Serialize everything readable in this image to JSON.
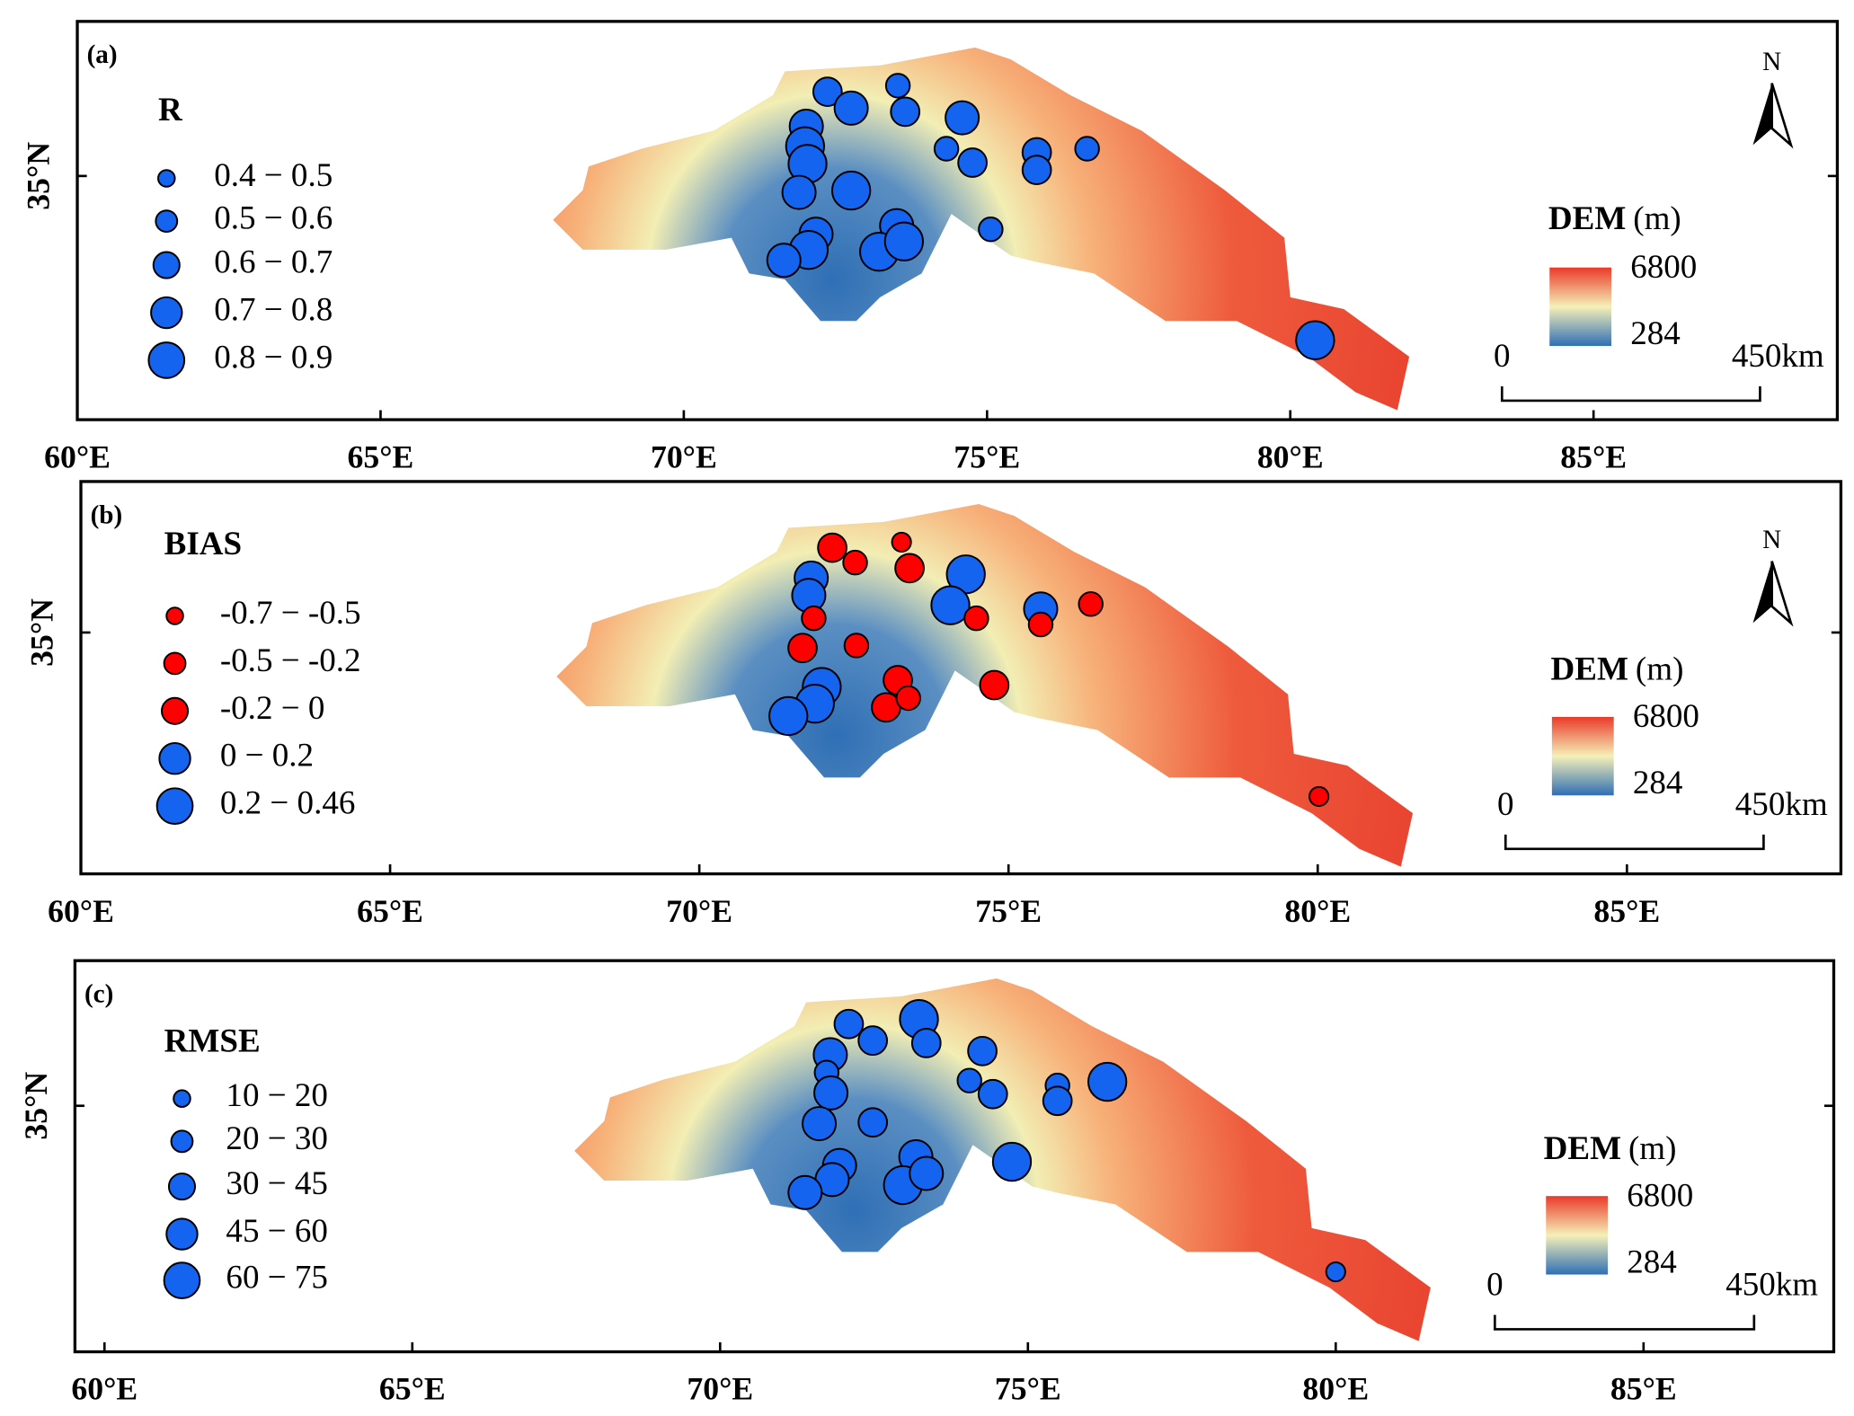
{
  "panels": [
    {
      "label": "(a)",
      "legend_title": "R",
      "classes": [
        "0.4 − 0.5",
        "0.5 − 0.6",
        "0.6 − 0.7",
        "0.7 − 0.8",
        "0.8 − 0.9"
      ],
      "colors": [
        "#1464f0",
        "#1464f0",
        "#1464f0",
        "#1464f0",
        "#1464f0"
      ],
      "xlim": [
        60,
        89.02
      ],
      "ylim": [
        30.98,
        37.55
      ],
      "xticks": [
        {
          "value": 60,
          "label": "60°E"
        },
        {
          "value": 65,
          "label": "65°E"
        },
        {
          "value": 70,
          "label": "70°E"
        },
        {
          "value": 75,
          "label": "75°E"
        },
        {
          "value": 80,
          "label": "80°E"
        },
        {
          "value": 85,
          "label": "85°E"
        }
      ],
      "yticks": [
        {
          "value": 35,
          "label": "35°N"
        }
      ],
      "dem_title": "DEM",
      "dem_unit": "(m)",
      "dem_max": "6800",
      "dem_min": "284",
      "scale_start": "0",
      "scale_end": "450km",
      "north": "N",
      "stations": [
        [
          72.37,
          36.39,
          2
        ],
        [
          73.53,
          36.49,
          1
        ],
        [
          72.76,
          36.12,
          3
        ],
        [
          73.65,
          36.06,
          2
        ],
        [
          74.59,
          35.96,
          3
        ],
        [
          72.02,
          35.82,
          3
        ],
        [
          72.0,
          35.49,
          4
        ],
        [
          72.04,
          35.2,
          4
        ],
        [
          74.33,
          35.45,
          1
        ],
        [
          74.76,
          35.22,
          2
        ],
        [
          75.82,
          35.39,
          2
        ],
        [
          75.82,
          35.1,
          2
        ],
        [
          76.65,
          35.45,
          1
        ],
        [
          71.9,
          34.73,
          3
        ],
        [
          72.76,
          34.76,
          4
        ],
        [
          73.51,
          34.18,
          3
        ],
        [
          72.18,
          34.04,
          3
        ],
        [
          72.06,
          33.78,
          4
        ],
        [
          71.65,
          33.61,
          3
        ],
        [
          73.22,
          33.75,
          4
        ],
        [
          73.63,
          33.92,
          4
        ],
        [
          75.06,
          34.12,
          1
        ],
        [
          80.41,
          32.29,
          4
        ]
      ]
    },
    {
      "label": "(b)",
      "legend_title": "BIAS",
      "classes": [
        "-0.7 − -0.5",
        "-0.5 − -0.2",
        "-0.2 − 0",
        "0 − 0.2",
        "0.2 − 0.46"
      ],
      "colors": [
        "#ff0000",
        "#ff0000",
        "#ff0000",
        "#1464f0",
        "#1464f0"
      ],
      "xlim": [
        60,
        88.46
      ],
      "ylim": [
        31.1,
        37.44
      ],
      "xticks": [
        {
          "value": 60,
          "label": "60°E"
        },
        {
          "value": 65,
          "label": "65°E"
        },
        {
          "value": 70,
          "label": "70°E"
        },
        {
          "value": 75,
          "label": "75°E"
        },
        {
          "value": 80,
          "label": "80°E"
        },
        {
          "value": 85,
          "label": "85°E"
        }
      ],
      "yticks": [
        {
          "value": 35,
          "label": "35°N"
        }
      ],
      "dem_title": "DEM",
      "dem_unit": "(m)",
      "dem_max": "6800",
      "dem_min": "284",
      "scale_start": "0",
      "scale_end": "450km",
      "north": "N",
      "stations": [
        [
          72.15,
          36.37,
          2
        ],
        [
          73.27,
          36.46,
          0
        ],
        [
          72.52,
          36.13,
          1
        ],
        [
          73.4,
          36.04,
          2
        ],
        [
          71.81,
          35.88,
          3
        ],
        [
          74.31,
          35.94,
          4
        ],
        [
          71.77,
          35.6,
          3
        ],
        [
          74.06,
          35.44,
          4
        ],
        [
          71.85,
          35.23,
          1
        ],
        [
          74.48,
          35.23,
          1
        ],
        [
          75.52,
          35.38,
          3
        ],
        [
          75.52,
          35.13,
          1
        ],
        [
          76.33,
          35.46,
          1
        ],
        [
          71.67,
          34.75,
          2
        ],
        [
          72.54,
          34.79,
          1
        ],
        [
          73.21,
          34.23,
          2
        ],
        [
          71.98,
          34.12,
          4
        ],
        [
          71.87,
          33.85,
          4
        ],
        [
          71.44,
          33.65,
          4
        ],
        [
          73.02,
          33.79,
          2
        ],
        [
          73.38,
          33.94,
          1
        ],
        [
          74.77,
          34.15,
          2
        ],
        [
          80.02,
          32.35,
          0
        ]
      ]
    },
    {
      "label": "(c)",
      "legend_title": "RMSE",
      "classes": [
        "10 − 20",
        "20 − 30",
        "30 − 45",
        "45 − 60",
        "60 − 75"
      ],
      "colors": [
        "#1464f0",
        "#1464f0",
        "#1464f0",
        "#1464f0",
        "#1464f0"
      ],
      "xlim": [
        59.52,
        88.09
      ],
      "ylim": [
        31.0,
        37.36
      ],
      "xticks": [
        {
          "value": 60,
          "label": "60°E"
        },
        {
          "value": 65,
          "label": "65°E"
        },
        {
          "value": 70,
          "label": "70°E"
        },
        {
          "value": 75,
          "label": "75°E"
        },
        {
          "value": 80,
          "label": "80°E"
        },
        {
          "value": 85,
          "label": "85°E"
        }
      ],
      "yticks": [
        {
          "value": 35,
          "label": "35°N"
        }
      ],
      "dem_title": "DEM",
      "dem_unit": "(m)",
      "dem_max": "6800",
      "dem_min": "284",
      "scale_start": "0",
      "scale_end": "450km",
      "stations": [
        [
          72.09,
          36.33,
          2
        ],
        [
          73.23,
          36.41,
          4
        ],
        [
          72.48,
          36.06,
          2
        ],
        [
          73.35,
          36.02,
          2
        ],
        [
          71.79,
          35.83,
          3
        ],
        [
          74.26,
          35.89,
          2
        ],
        [
          71.73,
          35.54,
          1
        ],
        [
          74.05,
          35.41,
          1
        ],
        [
          71.8,
          35.21,
          3
        ],
        [
          74.43,
          35.19,
          2
        ],
        [
          75.48,
          35.33,
          1
        ],
        [
          75.48,
          35.08,
          2
        ],
        [
          76.29,
          35.39,
          4
        ],
        [
          71.61,
          34.71,
          3
        ],
        [
          72.48,
          34.73,
          2
        ],
        [
          73.18,
          34.17,
          3
        ],
        [
          71.94,
          34.03,
          3
        ],
        [
          71.82,
          33.8,
          3
        ],
        [
          71.38,
          33.59,
          3
        ],
        [
          72.97,
          33.71,
          4
        ],
        [
          73.35,
          33.9,
          3
        ],
        [
          74.74,
          34.09,
          4
        ],
        [
          80.0,
          32.3,
          0
        ]
      ]
    }
  ]
}
